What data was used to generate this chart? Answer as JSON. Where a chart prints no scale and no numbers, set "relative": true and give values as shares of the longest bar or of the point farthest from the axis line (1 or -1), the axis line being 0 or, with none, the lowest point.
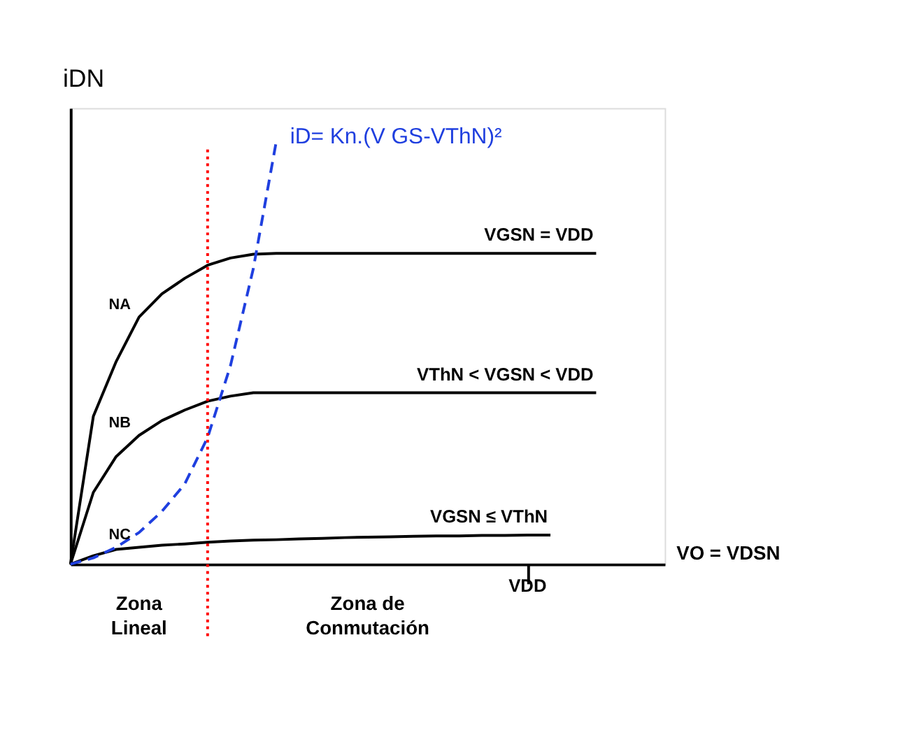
{
  "chart_data": {
    "type": "line",
    "relative": true,
    "xlabel": "VO = VDSN",
    "ylabel": "iDN",
    "grid": false,
    "marker": "none",
    "categories": [
      null,
      null,
      null,
      null,
      null,
      null,
      null,
      null,
      null,
      null,
      null,
      null,
      null,
      null,
      null,
      null,
      null,
      null,
      null,
      null,
      null,
      null,
      null,
      null,
      null,
      null,
      null
    ],
    "series": [
      {
        "name": "VGSN = VDD",
        "color": "#000000",
        "line_style": "solid",
        "values": [
          0,
          0.35,
          0.48,
          0.585,
          0.64,
          0.677,
          0.708,
          0.725,
          0.734,
          0.736,
          0.736,
          0.736,
          0.736,
          0.736,
          0.736,
          0.736,
          0.736,
          0.736,
          0.736,
          0.736,
          0.736,
          0.736,
          0.736,
          0.736,
          null,
          null,
          null
        ]
      },
      {
        "name": "VThN < VGSN < VDD",
        "color": "#000000",
        "line_style": "solid",
        "values": [
          0,
          0.17,
          0.255,
          0.305,
          0.34,
          0.365,
          0.386,
          0.398,
          0.406,
          0.406,
          0.406,
          0.406,
          0.406,
          0.406,
          0.406,
          0.406,
          0.406,
          0.406,
          0.406,
          0.406,
          0.406,
          0.406,
          0.406,
          0.406,
          null,
          null,
          null
        ]
      },
      {
        "name": "VGSN ≤ VThN",
        "color": "#000000",
        "line_style": "solid",
        "values": [
          0,
          0.02,
          0.035,
          0.04,
          0.045,
          0.048,
          0.052,
          0.055,
          0.057,
          0.058,
          0.06,
          0.061,
          0.063,
          0.064,
          0.065,
          0.066,
          0.067,
          0.067,
          0.068,
          0.068,
          0.069,
          0.069,
          null,
          null,
          null,
          null,
          null
        ]
      },
      {
        "name": "iD= Kn.(V GS-VThN)²",
        "color": "#1f3fdf",
        "line_style": "dashed",
        "values": [
          0,
          0.015,
          0.04,
          0.075,
          0.125,
          0.19,
          0.3,
          0.47,
          0.7,
          1.0,
          null,
          null,
          null,
          null,
          null,
          null,
          null,
          null,
          null,
          null,
          null,
          null,
          null,
          null,
          null,
          null,
          null
        ]
      }
    ],
    "annotations": [
      "NA",
      "NB",
      "NC",
      "Zona Lineal",
      "Zona de Conmutación",
      "VDD"
    ]
  }
}
